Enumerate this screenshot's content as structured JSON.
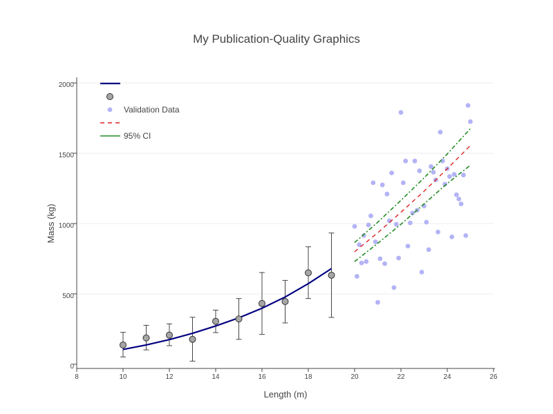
{
  "chart_data": {
    "type": "scatter",
    "title": "My Publication-Quality Graphics",
    "xlabel": "Length (m)",
    "ylabel": "Mass (kg)",
    "xlim": [
      8,
      26
    ],
    "ylim": [
      -30,
      2040
    ],
    "xticks": [
      8,
      10,
      12,
      14,
      16,
      18,
      20,
      22,
      24,
      26
    ],
    "yticks": [
      0,
      500,
      1000,
      1500,
      2000
    ],
    "grid": true,
    "legend_position": "top-left",
    "colors": {
      "fit": "#000080",
      "observed_fill": "#a6a6a6",
      "observed_edge": "#333333",
      "error_bar": "#444444",
      "validation": "#b3b3f5",
      "prediction": "#dd2222",
      "ci": "#228b22",
      "grid": "#ececec",
      "axis": "#444444"
    },
    "fit_line": {
      "name": "",
      "x": [
        10,
        11,
        12,
        13,
        14,
        15,
        16,
        17,
        18,
        19
      ],
      "y": [
        105,
        137,
        175,
        220,
        272,
        330,
        398,
        478,
        573,
        680
      ]
    },
    "observed": {
      "name": "",
      "x": [
        10,
        11,
        12,
        13,
        14,
        15,
        16,
        17,
        18,
        19
      ],
      "y": [
        137,
        187,
        207,
        177,
        305,
        322,
        432,
        446,
        650,
        633
      ],
      "err_plus": [
        90,
        90,
        80,
        157,
        80,
        145,
        220,
        150,
        185,
        300
      ],
      "err_minus": [
        85,
        85,
        75,
        155,
        80,
        145,
        220,
        152,
        183,
        300
      ]
    },
    "validation": {
      "name": "Validation Data",
      "points": [
        [
          20,
          980
        ],
        [
          20.1,
          625
        ],
        [
          20.2,
          850
        ],
        [
          20.3,
          720
        ],
        [
          20.4,
          915
        ],
        [
          20.5,
          730
        ],
        [
          20.6,
          990
        ],
        [
          20.7,
          1055
        ],
        [
          20.8,
          1290
        ],
        [
          20.9,
          870
        ],
        [
          21.0,
          440
        ],
        [
          21.1,
          750
        ],
        [
          21.2,
          1275
        ],
        [
          21.3,
          715
        ],
        [
          21.4,
          1210
        ],
        [
          21.5,
          1020
        ],
        [
          21.6,
          1360
        ],
        [
          21.7,
          545
        ],
        [
          21.8,
          995
        ],
        [
          21.9,
          755
        ],
        [
          22.0,
          1790
        ],
        [
          22.1,
          1290
        ],
        [
          22.2,
          1445
        ],
        [
          22.3,
          840
        ],
        [
          22.4,
          1005
        ],
        [
          22.5,
          1075
        ],
        [
          22.6,
          1445
        ],
        [
          22.7,
          1095
        ],
        [
          22.8,
          1375
        ],
        [
          22.9,
          655
        ],
        [
          23.0,
          1125
        ],
        [
          23.1,
          1010
        ],
        [
          23.2,
          815
        ],
        [
          23.3,
          1405
        ],
        [
          23.4,
          1365
        ],
        [
          23.5,
          1310
        ],
        [
          23.6,
          940
        ],
        [
          23.7,
          1650
        ],
        [
          23.8,
          1445
        ],
        [
          23.9,
          1280
        ],
        [
          24.0,
          1390
        ],
        [
          24.1,
          1335
        ],
        [
          24.2,
          905
        ],
        [
          24.3,
          1350
        ],
        [
          24.4,
          1205
        ],
        [
          24.5,
          1175
        ],
        [
          24.6,
          1140
        ],
        [
          24.7,
          1345
        ],
        [
          24.8,
          915
        ],
        [
          24.9,
          1840
        ],
        [
          25.0,
          1725
        ]
      ]
    },
    "prediction": {
      "name": "",
      "x": [
        20,
        21,
        22,
        23,
        24,
        25
      ],
      "y": [
        800,
        935,
        1080,
        1230,
        1390,
        1555
      ]
    },
    "ci_upper": {
      "name": "95% CI",
      "x": [
        20,
        21,
        22,
        23,
        24,
        25
      ],
      "y": [
        865,
        1010,
        1165,
        1325,
        1495,
        1675
      ]
    },
    "ci_lower": {
      "name": "",
      "x": [
        20,
        21,
        22,
        23,
        24,
        25
      ],
      "y": [
        730,
        860,
        995,
        1140,
        1285,
        1415
      ]
    }
  }
}
